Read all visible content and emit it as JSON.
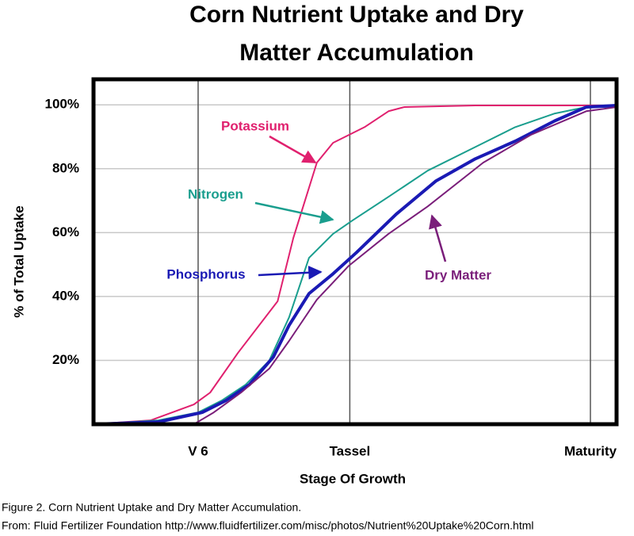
{
  "chart_data": {
    "type": "line",
    "title": [
      "Corn Nutrient Uptake and Dry",
      "Matter Accumulation"
    ],
    "x_label": "Stage Of Growth",
    "y_label": "% of Total Uptake",
    "xlim": [
      0,
      100
    ],
    "ylim": [
      0,
      108
    ],
    "xticks": [
      {
        "value": 20,
        "label": "V 6"
      },
      {
        "value": 49,
        "label": "Tassel"
      },
      {
        "value": 95,
        "label": "Maturity"
      }
    ],
    "yticks": [
      {
        "value": 20,
        "label": "20%"
      },
      {
        "value": 40,
        "label": "40%"
      },
      {
        "value": 60,
        "label": "60%"
      },
      {
        "value": 80,
        "label": "80%"
      },
      {
        "value": 100,
        "label": "100%"
      }
    ],
    "grid": true,
    "series": [
      {
        "name": "Potassium",
        "color": "#e0206e",
        "x": [
          0,
          10.9,
          19.2,
          22.3,
          27.6,
          35.2,
          38.2,
          42.7,
          45.8,
          51.8,
          56.4,
          59.4,
          73,
          100
        ],
        "values": [
          0,
          1.2,
          6.2,
          9.9,
          22.3,
          38.5,
          58.3,
          81.9,
          88.1,
          93,
          98,
          99.3,
          99.8,
          99.8
        ]
      },
      {
        "name": "Nitrogen",
        "color": "#1a9e8e",
        "x": [
          0,
          12.4,
          20,
          24.5,
          29.1,
          33.6,
          37.4,
          41.2,
          45.8,
          49.5,
          56.4,
          63.9,
          73,
          80.6,
          88.2,
          94.2,
          100
        ],
        "values": [
          0,
          1.2,
          3.7,
          7.4,
          12.4,
          19.9,
          33.5,
          52.1,
          59.6,
          63.8,
          71.2,
          79.4,
          86.8,
          93,
          97.3,
          99.3,
          99.3
        ]
      },
      {
        "name": "Phosphorus",
        "color": "#1a1ab4",
        "x": [
          0,
          12.4,
          20.8,
          25.3,
          29.8,
          34.4,
          37.4,
          41.2,
          45.8,
          50.3,
          57.9,
          65.5,
          73,
          80.6,
          88.2,
          94.2,
          100
        ],
        "values": [
          0,
          0.7,
          3.7,
          7.4,
          12.4,
          21.1,
          31,
          40.9,
          47.1,
          53.8,
          65.8,
          76.2,
          83.1,
          88.6,
          95,
          99.3,
          99.8
        ]
      },
      {
        "name": "Dry Matter",
        "color": "#7a1e7a",
        "x": [
          19.2,
          23,
          28.2,
          33.6,
          37.4,
          42.7,
          48.8,
          56.4,
          63.9,
          74.5,
          83.6,
          94.2,
          100
        ],
        "values": [
          0,
          3.7,
          9.9,
          17.4,
          26.1,
          39,
          49.6,
          59.6,
          68.2,
          81.9,
          90.6,
          98,
          99.3
        ]
      }
    ],
    "caption": [
      "Figure 2. Corn Nutrient Uptake and Dry Matter Accumulation.",
      "From: Fluid Fertilizer Foundation http://www.fluidfertilizer.com/misc/photos/Nutrient%20Uptake%20Corn.html"
    ]
  }
}
